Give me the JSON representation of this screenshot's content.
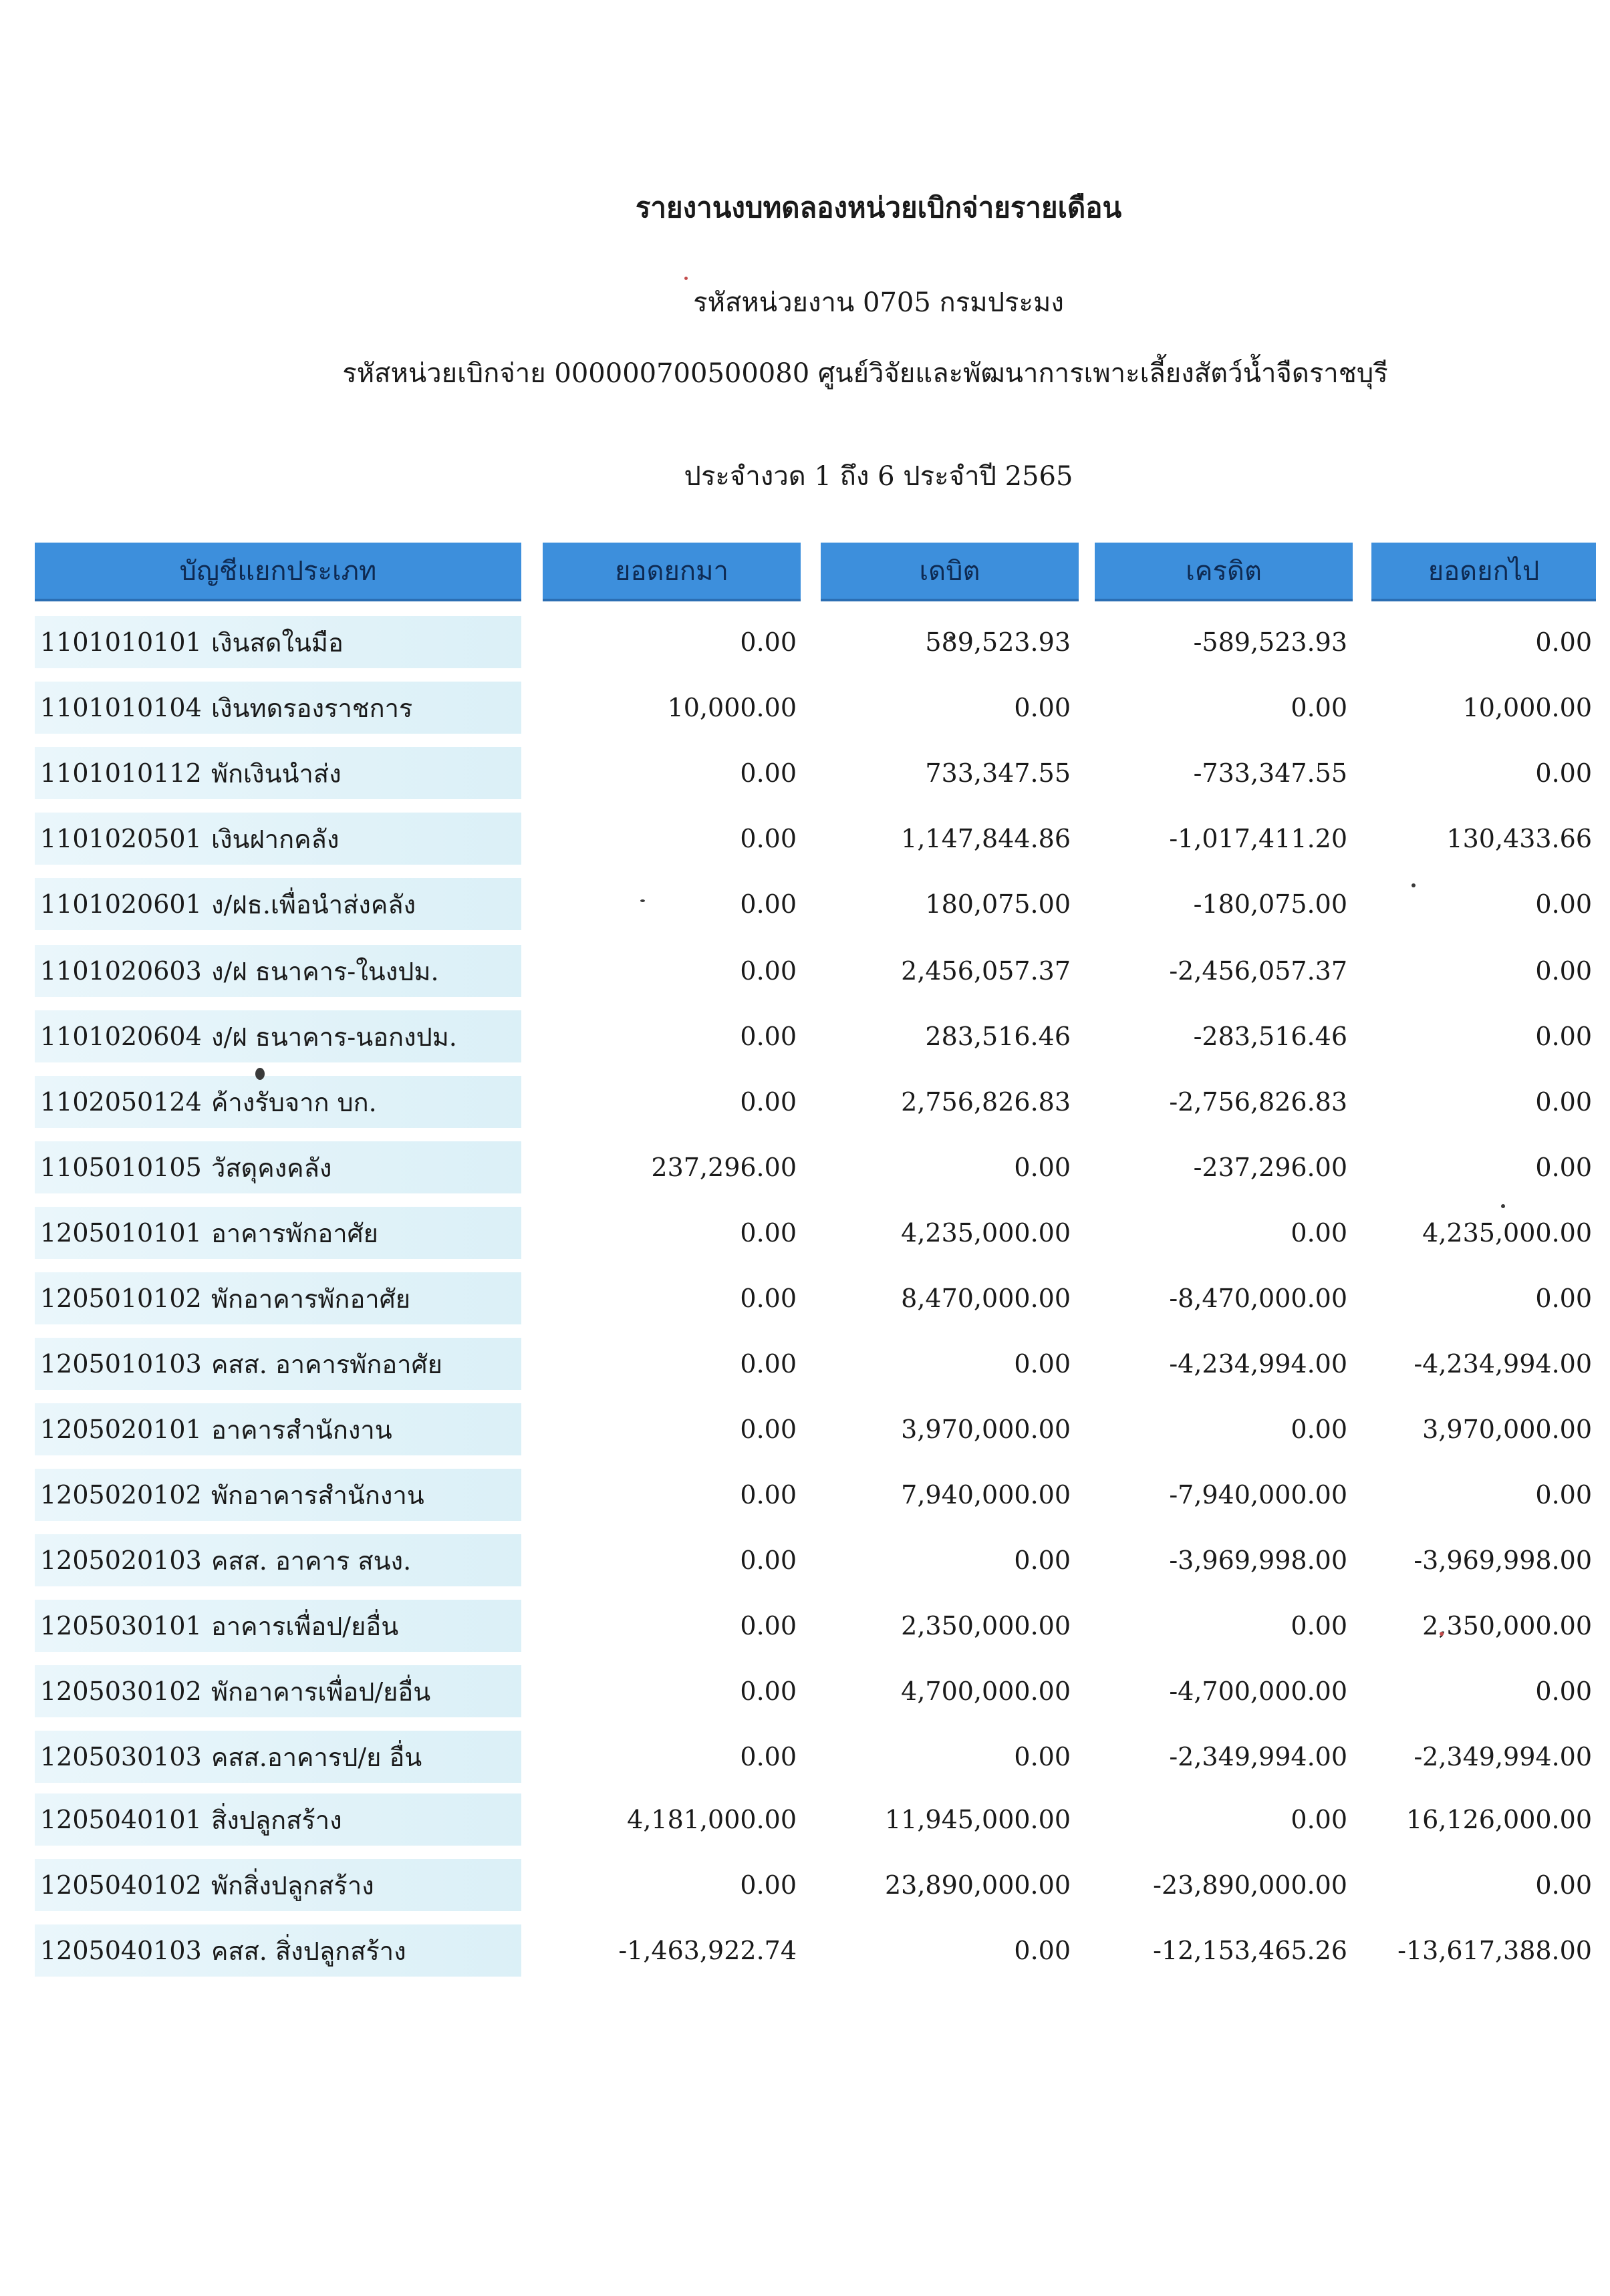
{
  "title": "รายงานงบทดลองหน่วยเบิกจ่ายรายเดือน",
  "agency": "รหัสหน่วยงาน 0705 กรมประมง",
  "disbursing_unit": "รหัสหน่วยเบิกจ่าย 000000700500080 ศูนย์วิจัยและพัฒนาการเพาะเลี้ยงสัตว์น้ำจืดราชบุรี",
  "period": "ประจำงวด 1 ถึง 6 ประจำปี 2565",
  "columns": {
    "account": "บัญชีแยกประเภท",
    "opening": "ยอดยกมา",
    "debit": "เดบิต",
    "credit": "เครดิต",
    "closing": "ยอดยกไป"
  },
  "rows": [
    {
      "code": "1101010101",
      "name": "เงินสดในมือ",
      "opening": "0.00",
      "debit": "589,523.93",
      "credit": "-589,523.93",
      "closing": "0.00"
    },
    {
      "code": "1101010104",
      "name": "เงินทดรองราชการ",
      "opening": "10,000.00",
      "debit": "0.00",
      "credit": "0.00",
      "closing": "10,000.00"
    },
    {
      "code": "1101010112",
      "name": "พักเงินนำส่ง",
      "opening": "0.00",
      "debit": "733,347.55",
      "credit": "-733,347.55",
      "closing": "0.00"
    },
    {
      "code": "1101020501",
      "name": "เงินฝากคลัง",
      "opening": "0.00",
      "debit": "1,147,844.86",
      "credit": "-1,017,411.20",
      "closing": "130,433.66"
    },
    {
      "code": "1101020601",
      "name": "ง/ฝธ.เพื่อนำส่งคลัง",
      "opening": "0.00",
      "debit": "180,075.00",
      "credit": "-180,075.00",
      "closing": "0.00"
    },
    {
      "code": "1101020603",
      "name": "ง/ฝ ธนาคาร-ในงปม.",
      "opening": "0.00",
      "debit": "2,456,057.37",
      "credit": "-2,456,057.37",
      "closing": "0.00"
    },
    {
      "code": "1101020604",
      "name": "ง/ฝ ธนาคาร-นอกงปม.",
      "opening": "0.00",
      "debit": "283,516.46",
      "credit": "-283,516.46",
      "closing": "0.00"
    },
    {
      "code": "1102050124",
      "name": "ค้างรับจาก บก.",
      "opening": "0.00",
      "debit": "2,756,826.83",
      "credit": "-2,756,826.83",
      "closing": "0.00"
    },
    {
      "code": "1105010105",
      "name": "วัสดุคงคลัง",
      "opening": "237,296.00",
      "debit": "0.00",
      "credit": "-237,296.00",
      "closing": "0.00"
    },
    {
      "code": "1205010101",
      "name": "อาคารพักอาศัย",
      "opening": "0.00",
      "debit": "4,235,000.00",
      "credit": "0.00",
      "closing": "4,235,000.00"
    },
    {
      "code": "1205010102",
      "name": "พักอาคารพักอาศัย",
      "opening": "0.00",
      "debit": "8,470,000.00",
      "credit": "-8,470,000.00",
      "closing": "0.00"
    },
    {
      "code": "1205010103",
      "name": "คสส. อาคารพักอาศัย",
      "opening": "0.00",
      "debit": "0.00",
      "credit": "-4,234,994.00",
      "closing": "-4,234,994.00"
    },
    {
      "code": "1205020101",
      "name": "อาคารสำนักงาน",
      "opening": "0.00",
      "debit": "3,970,000.00",
      "credit": "0.00",
      "closing": "3,970,000.00"
    },
    {
      "code": "1205020102",
      "name": "พักอาคารสำนักงาน",
      "opening": "0.00",
      "debit": "7,940,000.00",
      "credit": "-7,940,000.00",
      "closing": "0.00"
    },
    {
      "code": "1205020103",
      "name": "คสส. อาคาร สนง.",
      "opening": "0.00",
      "debit": "0.00",
      "credit": "-3,969,998.00",
      "closing": "-3,969,998.00"
    },
    {
      "code": "1205030101",
      "name": "อาคารเพื่อป/ยอื่น",
      "opening": "0.00",
      "debit": "2,350,000.00",
      "credit": "0.00",
      "closing": "2,350,000.00"
    },
    {
      "code": "1205030102",
      "name": "พักอาคารเพื่อป/ยอื่น",
      "opening": "0.00",
      "debit": "4,700,000.00",
      "credit": "-4,700,000.00",
      "closing": "0.00"
    },
    {
      "code": "1205030103",
      "name": "คสส.อาคารป/ย อื่น",
      "opening": "0.00",
      "debit": "0.00",
      "credit": "-2,349,994.00",
      "closing": "-2,349,994.00"
    },
    {
      "code": "1205040101",
      "name": "สิ่งปลูกสร้าง",
      "opening": "4,181,000.00",
      "debit": "11,945,000.00",
      "credit": "0.00",
      "closing": "16,126,000.00"
    },
    {
      "code": "1205040102",
      "name": "พักสิ่งปลูกสร้าง",
      "opening": "0.00",
      "debit": "23,890,000.00",
      "credit": "-23,890,000.00",
      "closing": "0.00"
    },
    {
      "code": "1205040103",
      "name": "คสส. สิ่งปลูกสร้าง",
      "opening": "-1,463,922.74",
      "debit": "0.00",
      "credit": "-12,153,465.26",
      "closing": "-13,617,388.00"
    }
  ]
}
